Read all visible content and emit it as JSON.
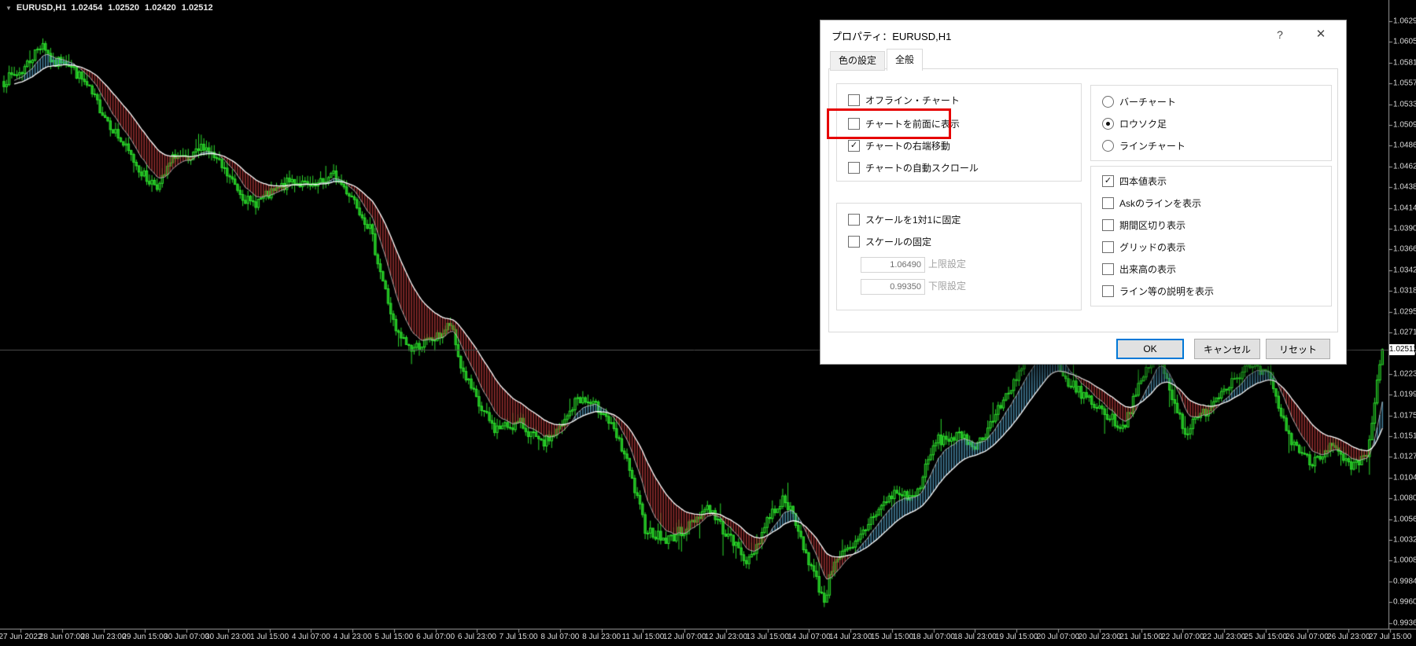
{
  "app": {
    "symbol_header": {
      "expand_icon": "▼",
      "symbol": "EURUSD,H1",
      "open": "1.02454",
      "high": "1.02520",
      "low": "1.02420",
      "close": "1.02512"
    }
  },
  "dialog": {
    "title": "プロパティ：EURUSD,H1",
    "help_icon": "?",
    "close_icon": "✕",
    "tabs": [
      {
        "name": "colors",
        "label": "色の設定",
        "active": false
      },
      {
        "name": "general",
        "label": "全般",
        "active": true
      }
    ],
    "left_checkboxes": [
      {
        "name": "offline-chart",
        "label": "オフライン・チャート",
        "checked": false,
        "highlighted": false
      },
      {
        "name": "chart-on-foreground",
        "label": "チャートを前面に表示",
        "checked": false,
        "highlighted": true
      },
      {
        "name": "chart-shift",
        "label": "チャートの右端移動",
        "checked": true,
        "highlighted": false
      },
      {
        "name": "chart-autoscroll",
        "label": "チャートの自動スクロール",
        "checked": false,
        "highlighted": false
      }
    ],
    "scale_checkboxes": [
      {
        "name": "scale-one-to-one",
        "label": "スケールを1対1に固定",
        "checked": false
      },
      {
        "name": "scale-fix",
        "label": "スケールの固定",
        "checked": false
      }
    ],
    "scale_inputs": [
      {
        "name": "scale-max",
        "value": "1.06490",
        "label": "上限設定"
      },
      {
        "name": "scale-min",
        "value": "0.99350",
        "label": "下限設定"
      }
    ],
    "chart_type_radios": [
      {
        "name": "bar-chart",
        "label": "バーチャート",
        "selected": false
      },
      {
        "name": "candlestick-chart",
        "label": "ロウソク足",
        "selected": true
      },
      {
        "name": "line-chart",
        "label": "ラインチャート",
        "selected": false
      }
    ],
    "display_checkboxes": [
      {
        "name": "show-ohlc",
        "label": "四本値表示",
        "checked": true
      },
      {
        "name": "show-ask-line",
        "label": "Askのラインを表示",
        "checked": false
      },
      {
        "name": "show-period-separators",
        "label": "期間区切り表示",
        "checked": false
      },
      {
        "name": "show-grid",
        "label": "グリッドの表示",
        "checked": false
      },
      {
        "name": "show-volumes",
        "label": "出来高の表示",
        "checked": false
      },
      {
        "name": "show-object-descriptions",
        "label": "ライン等の説明を表示",
        "checked": false
      }
    ],
    "buttons": [
      {
        "name": "ok",
        "label": "OK",
        "default": true
      },
      {
        "name": "cancel",
        "label": "キャンセル",
        "default": false
      },
      {
        "name": "reset",
        "label": "リセット",
        "default": false
      }
    ],
    "highlight_color": "#e60000"
  },
  "chart_data": {
    "type": "candlestick",
    "symbol": "EURUSD",
    "timeframe": "H1",
    "background": "#000000",
    "axis_color": "#a0a0a0",
    "candle_color": "#2ee62e",
    "candle_fill_down": "#1fae1f",
    "candle_fill_up": "#063906",
    "ribbon_down_color": "#a83434",
    "ribbon_up_color": "#4e93b4",
    "ma_slow_color": "#ffffff",
    "ma_fast_color": "#d0d0d0",
    "current_price": 1.02512,
    "current_price_label": "1.02512",
    "current_price_line_color": "#4f4f4f",
    "ohlc": {
      "open": 1.02454,
      "high": 1.0252,
      "low": 1.0242,
      "close": 1.02512
    },
    "y_axis": {
      "top_value": 1.0629,
      "bottom_value": 0.99365,
      "labels": [
        "1.06290",
        "1.06050",
        "1.05810",
        "1.05575",
        "1.05335",
        "1.05095",
        "1.04860",
        "1.04620",
        "1.04380",
        "1.04140",
        "1.03905",
        "1.03665",
        "1.03425",
        "1.03185",
        "1.02950",
        "1.02710",
        "1.02470",
        "1.02230",
        "1.01995",
        "1.01755",
        "1.01515",
        "1.01275",
        "1.01040",
        "1.00800",
        "1.00560",
        "1.00320",
        "1.00085",
        "0.99845",
        "0.99605",
        "0.99365"
      ]
    },
    "x_axis": {
      "labels": [
        "27 Jun 2022",
        "28 Jun 07:00",
        "28 Jun 23:00",
        "29 Jun 15:00",
        "30 Jun 07:00",
        "30 Jun 23:00",
        "1 Jul 15:00",
        "4 Jul 07:00",
        "4 Jul 23:00",
        "5 Jul 15:00",
        "6 Jul 07:00",
        "6 Jul 23:00",
        "7 Jul 15:00",
        "8 Jul 07:00",
        "8 Jul 23:00",
        "11 Jul 15:00",
        "12 Jul 07:00",
        "12 Jul 23:00",
        "13 Jul 15:00",
        "14 Jul 07:00",
        "14 Jul 23:00",
        "15 Jul 15:00",
        "18 Jul 07:00",
        "18 Jul 23:00",
        "19 Jul 15:00",
        "20 Jul 07:00",
        "20 Jul 23:00",
        "21 Jul 15:00",
        "22 Jul 07:00",
        "22 Jul 23:00",
        "25 Jul 15:00",
        "26 Jul 07:00",
        "26 Jul 23:00",
        "27 Jul 15:00"
      ]
    },
    "candles_per_label": 16,
    "price_path_anchors": [
      [
        0,
        1.056
      ],
      [
        7,
        1.0572
      ],
      [
        15,
        1.0605
      ],
      [
        19,
        1.0578
      ],
      [
        23,
        1.0587
      ],
      [
        31,
        1.0558
      ],
      [
        39,
        1.052
      ],
      [
        47,
        1.0482
      ],
      [
        55,
        1.0447
      ],
      [
        60,
        1.044
      ],
      [
        66,
        1.0476
      ],
      [
        71,
        1.0465
      ],
      [
        77,
        1.0487
      ],
      [
        87,
        1.0448
      ],
      [
        95,
        1.0418
      ],
      [
        103,
        1.043
      ],
      [
        111,
        1.0446
      ],
      [
        119,
        1.0436
      ],
      [
        127,
        1.0452
      ],
      [
        135,
        1.0424
      ],
      [
        141,
        1.039
      ],
      [
        151,
        1.027
      ],
      [
        157,
        1.0252
      ],
      [
        167,
        1.0265
      ],
      [
        172,
        1.028
      ],
      [
        176,
        1.0232
      ],
      [
        183,
        1.0186
      ],
      [
        189,
        1.016
      ],
      [
        199,
        1.0166
      ],
      [
        207,
        1.0141
      ],
      [
        215,
        1.0162
      ],
      [
        221,
        1.0196
      ],
      [
        231,
        1.018
      ],
      [
        239,
        1.0131
      ],
      [
        247,
        1.0046
      ],
      [
        255,
        1.0031
      ],
      [
        263,
        1.0046
      ],
      [
        271,
        1.0071
      ],
      [
        279,
        1.0036
      ],
      [
        287,
        1.0006
      ],
      [
        295,
        1.0061
      ],
      [
        301,
        1.0081
      ],
      [
        311,
        1.0001
      ],
      [
        316,
        0.9962
      ],
      [
        320,
        1.0011
      ],
      [
        327,
        1.0021
      ],
      [
        335,
        1.0061
      ],
      [
        343,
        1.0086
      ],
      [
        351,
        1.0081
      ],
      [
        359,
        1.0146
      ],
      [
        367,
        1.0151
      ],
      [
        375,
        1.0141
      ],
      [
        383,
        1.0181
      ],
      [
        391,
        1.0226
      ],
      [
        402,
        1.0266
      ],
      [
        407,
        1.0221
      ],
      [
        423,
        1.0181
      ],
      [
        431,
        1.0161
      ],
      [
        439,
        1.0221
      ],
      [
        444,
        1.0251
      ],
      [
        455,
        1.0156
      ],
      [
        463,
        1.0181
      ],
      [
        471,
        1.0211
      ],
      [
        479,
        1.0231
      ],
      [
        487,
        1.0221
      ],
      [
        495,
        1.0151
      ],
      [
        503,
        1.0121
      ],
      [
        511,
        1.0141
      ],
      [
        519,
        1.0113
      ],
      [
        525,
        1.0128
      ],
      [
        531,
        1.02512
      ]
    ]
  }
}
